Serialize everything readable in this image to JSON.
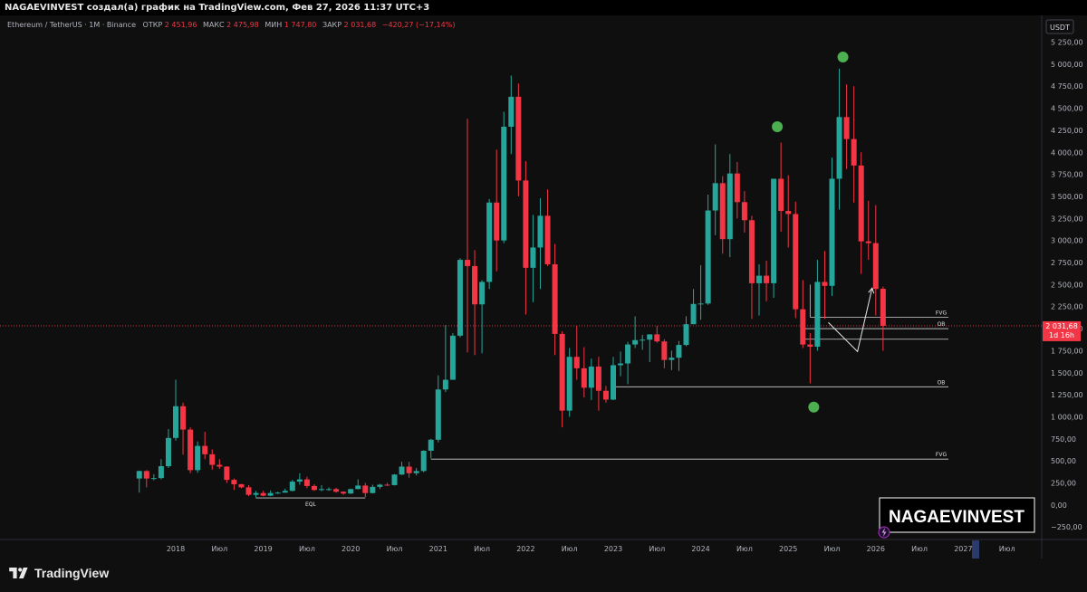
{
  "header": {
    "text": "NAGAEVINVEST создал(а) график на TradingView.com, Фев 27, 2026 11:37 UTC+3"
  },
  "legend": {
    "symbol": "Ethereum / TetherUS · 1M · Binance",
    "open_label": "ОТКР",
    "open": "2 451,96",
    "high_label": "МАКС",
    "high": "2 475,98",
    "low_label": "МИН",
    "low": "1 747,80",
    "close_label": "ЗАКР",
    "close": "2 031,68",
    "change": "−420,27 (−17,14%)"
  },
  "price_axis": {
    "currency": "USDT",
    "current_price": "2 031,68",
    "countdown": "1d 16h"
  },
  "watermark": "NAGAEVINVEST",
  "footer": {
    "brand": "TradingView"
  },
  "colors": {
    "up": "#26a69a",
    "down": "#f23645",
    "background": "#0f0f0f",
    "text": "#b2b5be",
    "marker": "#4caf50",
    "price_line": "#f23645"
  },
  "chart_data": {
    "type": "candlestick",
    "interval": "1M",
    "y_axis": {
      "min": -250,
      "max": 5250,
      "tick_step": 250,
      "tick_labels": [
        "5 250,00",
        "5 000,00",
        "4 750,00",
        "4 500,00",
        "4 250,00",
        "4 000,00",
        "3 750,00",
        "3 500,00",
        "3 250,00",
        "3 000,00",
        "2 750,00",
        "2 500,00",
        "2 250,00",
        "2 000,00",
        "1 750,00",
        "1 500,00",
        "1 250,00",
        "1 000,00",
        "750,00",
        "500,00",
        "250,00",
        "0,00",
        "−250,00"
      ]
    },
    "x_axis": {
      "labels": [
        {
          "text": "2018",
          "date": "2018-01"
        },
        {
          "text": "Июл",
          "date": "2018-07"
        },
        {
          "text": "2019",
          "date": "2019-01"
        },
        {
          "text": "Июл",
          "date": "2019-07"
        },
        {
          "text": "2020",
          "date": "2020-01"
        },
        {
          "text": "Июл",
          "date": "2020-07"
        },
        {
          "text": "2021",
          "date": "2021-01"
        },
        {
          "text": "Июл",
          "date": "2021-07"
        },
        {
          "text": "2022",
          "date": "2022-01"
        },
        {
          "text": "Июл",
          "date": "2022-07"
        },
        {
          "text": "2023",
          "date": "2023-01"
        },
        {
          "text": "Июл",
          "date": "2023-07"
        },
        {
          "text": "2024",
          "date": "2024-01"
        },
        {
          "text": "Июл",
          "date": "2024-07"
        },
        {
          "text": "2025",
          "date": "2025-01"
        },
        {
          "text": "Июл",
          "date": "2025-07"
        },
        {
          "text": "2026",
          "date": "2026-01"
        },
        {
          "text": "Июл",
          "date": "2026-07"
        },
        {
          "text": "2027",
          "date": "2027-01"
        },
        {
          "text": "Июл",
          "date": "2027-07"
        }
      ]
    },
    "candles": [
      {
        "t": "2017-08",
        "o": 300,
        "h": 390,
        "l": 140,
        "c": 385
      },
      {
        "t": "2017-09",
        "o": 385,
        "h": 395,
        "l": 200,
        "c": 300
      },
      {
        "t": "2017-10",
        "o": 300,
        "h": 350,
        "l": 280,
        "c": 305
      },
      {
        "t": "2017-11",
        "o": 305,
        "h": 520,
        "l": 290,
        "c": 440
      },
      {
        "t": "2017-12",
        "o": 440,
        "h": 860,
        "l": 420,
        "c": 760
      },
      {
        "t": "2018-01",
        "o": 760,
        "h": 1420,
        "l": 730,
        "c": 1120
      },
      {
        "t": "2018-02",
        "o": 1120,
        "h": 1160,
        "l": 570,
        "c": 855
      },
      {
        "t": "2018-03",
        "o": 855,
        "h": 880,
        "l": 360,
        "c": 395
      },
      {
        "t": "2018-04",
        "o": 395,
        "h": 720,
        "l": 365,
        "c": 670
      },
      {
        "t": "2018-05",
        "o": 670,
        "h": 830,
        "l": 520,
        "c": 575
      },
      {
        "t": "2018-06",
        "o": 575,
        "h": 630,
        "l": 400,
        "c": 455
      },
      {
        "t": "2018-07",
        "o": 455,
        "h": 520,
        "l": 410,
        "c": 435
      },
      {
        "t": "2018-08",
        "o": 435,
        "h": 440,
        "l": 250,
        "c": 285
      },
      {
        "t": "2018-09",
        "o": 285,
        "h": 300,
        "l": 170,
        "c": 235
      },
      {
        "t": "2018-10",
        "o": 235,
        "h": 240,
        "l": 190,
        "c": 200
      },
      {
        "t": "2018-11",
        "o": 200,
        "h": 225,
        "l": 100,
        "c": 115
      },
      {
        "t": "2018-12",
        "o": 115,
        "h": 160,
        "l": 82,
        "c": 135
      },
      {
        "t": "2019-01",
        "o": 135,
        "h": 160,
        "l": 100,
        "c": 105
      },
      {
        "t": "2019-02",
        "o": 105,
        "h": 165,
        "l": 100,
        "c": 135
      },
      {
        "t": "2019-03",
        "o": 135,
        "h": 150,
        "l": 125,
        "c": 140
      },
      {
        "t": "2019-04",
        "o": 140,
        "h": 185,
        "l": 140,
        "c": 160
      },
      {
        "t": "2019-05",
        "o": 160,
        "h": 285,
        "l": 155,
        "c": 265
      },
      {
        "t": "2019-06",
        "o": 265,
        "h": 360,
        "l": 230,
        "c": 290
      },
      {
        "t": "2019-07",
        "o": 290,
        "h": 320,
        "l": 190,
        "c": 215
      },
      {
        "t": "2019-08",
        "o": 215,
        "h": 235,
        "l": 160,
        "c": 170
      },
      {
        "t": "2019-09",
        "o": 170,
        "h": 225,
        "l": 155,
        "c": 180
      },
      {
        "t": "2019-10",
        "o": 180,
        "h": 200,
        "l": 160,
        "c": 180
      },
      {
        "t": "2019-11",
        "o": 180,
        "h": 195,
        "l": 140,
        "c": 150
      },
      {
        "t": "2019-12",
        "o": 150,
        "h": 155,
        "l": 115,
        "c": 130
      },
      {
        "t": "2020-01",
        "o": 130,
        "h": 185,
        "l": 125,
        "c": 180
      },
      {
        "t": "2020-02",
        "o": 180,
        "h": 290,
        "l": 180,
        "c": 220
      },
      {
        "t": "2020-03",
        "o": 220,
        "h": 250,
        "l": 90,
        "c": 135
      },
      {
        "t": "2020-04",
        "o": 135,
        "h": 230,
        "l": 130,
        "c": 205
      },
      {
        "t": "2020-05",
        "o": 205,
        "h": 240,
        "l": 180,
        "c": 230
      },
      {
        "t": "2020-06",
        "o": 230,
        "h": 250,
        "l": 215,
        "c": 225
      },
      {
        "t": "2020-07",
        "o": 225,
        "h": 350,
        "l": 220,
        "c": 345
      },
      {
        "t": "2020-08",
        "o": 345,
        "h": 490,
        "l": 340,
        "c": 435
      },
      {
        "t": "2020-09",
        "o": 435,
        "h": 490,
        "l": 310,
        "c": 360
      },
      {
        "t": "2020-10",
        "o": 360,
        "h": 420,
        "l": 335,
        "c": 385
      },
      {
        "t": "2020-11",
        "o": 385,
        "h": 620,
        "l": 370,
        "c": 615
      },
      {
        "t": "2020-12",
        "o": 615,
        "h": 750,
        "l": 530,
        "c": 740
      },
      {
        "t": "2021-01",
        "o": 740,
        "h": 1470,
        "l": 710,
        "c": 1310
      },
      {
        "t": "2021-02",
        "o": 1310,
        "h": 2040,
        "l": 1280,
        "c": 1420
      },
      {
        "t": "2021-03",
        "o": 1420,
        "h": 1950,
        "l": 1420,
        "c": 1920
      },
      {
        "t": "2021-04",
        "o": 1920,
        "h": 2800,
        "l": 1900,
        "c": 2780
      },
      {
        "t": "2021-05",
        "o": 2780,
        "h": 4380,
        "l": 1730,
        "c": 2710
      },
      {
        "t": "2021-06",
        "o": 2710,
        "h": 2890,
        "l": 1700,
        "c": 2275
      },
      {
        "t": "2021-07",
        "o": 2275,
        "h": 2550,
        "l": 1720,
        "c": 2530
      },
      {
        "t": "2021-08",
        "o": 2530,
        "h": 3470,
        "l": 2450,
        "c": 3430
      },
      {
        "t": "2021-09",
        "o": 3430,
        "h": 4030,
        "l": 2650,
        "c": 3000
      },
      {
        "t": "2021-10",
        "o": 3000,
        "h": 4460,
        "l": 2970,
        "c": 4290
      },
      {
        "t": "2021-11",
        "o": 4290,
        "h": 4870,
        "l": 3980,
        "c": 4630
      },
      {
        "t": "2021-12",
        "o": 4630,
        "h": 4780,
        "l": 3500,
        "c": 3680
      },
      {
        "t": "2022-01",
        "o": 3680,
        "h": 3900,
        "l": 2160,
        "c": 2690
      },
      {
        "t": "2022-02",
        "o": 2690,
        "h": 3290,
        "l": 2300,
        "c": 2920
      },
      {
        "t": "2022-03",
        "o": 2920,
        "h": 3480,
        "l": 2450,
        "c": 3280
      },
      {
        "t": "2022-04",
        "o": 3280,
        "h": 3580,
        "l": 2710,
        "c": 2730
      },
      {
        "t": "2022-05",
        "o": 2730,
        "h": 2960,
        "l": 1700,
        "c": 1940
      },
      {
        "t": "2022-06",
        "o": 1940,
        "h": 1970,
        "l": 880,
        "c": 1070
      },
      {
        "t": "2022-07",
        "o": 1070,
        "h": 1780,
        "l": 1000,
        "c": 1680
      },
      {
        "t": "2022-08",
        "o": 1680,
        "h": 2030,
        "l": 1420,
        "c": 1550
      },
      {
        "t": "2022-09",
        "o": 1550,
        "h": 1790,
        "l": 1220,
        "c": 1330
      },
      {
        "t": "2022-10",
        "o": 1330,
        "h": 1660,
        "l": 1190,
        "c": 1570
      },
      {
        "t": "2022-11",
        "o": 1570,
        "h": 1680,
        "l": 1070,
        "c": 1295
      },
      {
        "t": "2022-12",
        "o": 1295,
        "h": 1350,
        "l": 1160,
        "c": 1195
      },
      {
        "t": "2023-01",
        "o": 1195,
        "h": 1680,
        "l": 1190,
        "c": 1585
      },
      {
        "t": "2023-02",
        "o": 1585,
        "h": 1740,
        "l": 1460,
        "c": 1605
      },
      {
        "t": "2023-03",
        "o": 1605,
        "h": 1850,
        "l": 1370,
        "c": 1820
      },
      {
        "t": "2023-04",
        "o": 1820,
        "h": 2140,
        "l": 1780,
        "c": 1870
      },
      {
        "t": "2023-05",
        "o": 1870,
        "h": 1930,
        "l": 1760,
        "c": 1875
      },
      {
        "t": "2023-06",
        "o": 1875,
        "h": 1930,
        "l": 1620,
        "c": 1935
      },
      {
        "t": "2023-07",
        "o": 1935,
        "h": 2030,
        "l": 1840,
        "c": 1855
      },
      {
        "t": "2023-08",
        "o": 1855,
        "h": 1880,
        "l": 1550,
        "c": 1645
      },
      {
        "t": "2023-09",
        "o": 1645,
        "h": 1750,
        "l": 1530,
        "c": 1670
      },
      {
        "t": "2023-10",
        "o": 1670,
        "h": 1860,
        "l": 1520,
        "c": 1815
      },
      {
        "t": "2023-11",
        "o": 1815,
        "h": 2140,
        "l": 1800,
        "c": 2050
      },
      {
        "t": "2023-12",
        "o": 2050,
        "h": 2450,
        "l": 2050,
        "c": 2280
      },
      {
        "t": "2024-01",
        "o": 2280,
        "h": 2720,
        "l": 2100,
        "c": 2285
      },
      {
        "t": "2024-02",
        "o": 2285,
        "h": 3520,
        "l": 2270,
        "c": 3340
      },
      {
        "t": "2024-03",
        "o": 3340,
        "h": 4090,
        "l": 3060,
        "c": 3650
      },
      {
        "t": "2024-04",
        "o": 3650,
        "h": 3730,
        "l": 2850,
        "c": 3015
      },
      {
        "t": "2024-05",
        "o": 3015,
        "h": 3980,
        "l": 2810,
        "c": 3760
      },
      {
        "t": "2024-06",
        "o": 3760,
        "h": 3890,
        "l": 3250,
        "c": 3435
      },
      {
        "t": "2024-07",
        "o": 3435,
        "h": 3560,
        "l": 3090,
        "c": 3230
      },
      {
        "t": "2024-08",
        "o": 3230,
        "h": 3280,
        "l": 2110,
        "c": 2515
      },
      {
        "t": "2024-09",
        "o": 2515,
        "h": 2730,
        "l": 2150,
        "c": 2600
      },
      {
        "t": "2024-10",
        "o": 2600,
        "h": 2770,
        "l": 2310,
        "c": 2515
      },
      {
        "t": "2024-11",
        "o": 2515,
        "h": 3680,
        "l": 2350,
        "c": 3700
      },
      {
        "t": "2024-12",
        "o": 3700,
        "h": 4110,
        "l": 3100,
        "c": 3335
      },
      {
        "t": "2025-01",
        "o": 3335,
        "h": 3740,
        "l": 2920,
        "c": 3300
      },
      {
        "t": "2025-02",
        "o": 3300,
        "h": 3440,
        "l": 2120,
        "c": 2220
      },
      {
        "t": "2025-03",
        "o": 2220,
        "h": 2550,
        "l": 1780,
        "c": 1820
      },
      {
        "t": "2025-04",
        "o": 1820,
        "h": 1950,
        "l": 1380,
        "c": 1795
      },
      {
        "t": "2025-05",
        "o": 1795,
        "h": 2780,
        "l": 1750,
        "c": 2530
      },
      {
        "t": "2025-06",
        "o": 2530,
        "h": 2880,
        "l": 2110,
        "c": 2485
      },
      {
        "t": "2025-07",
        "o": 2485,
        "h": 3940,
        "l": 2370,
        "c": 3700
      },
      {
        "t": "2025-08",
        "o": 3700,
        "h": 4950,
        "l": 3350,
        "c": 4400
      },
      {
        "t": "2025-09",
        "o": 4400,
        "h": 4770,
        "l": 3810,
        "c": 4150
      },
      {
        "t": "2025-10",
        "o": 4150,
        "h": 4750,
        "l": 3430,
        "c": 3850
      },
      {
        "t": "2025-11",
        "o": 3850,
        "h": 4000,
        "l": 2620,
        "c": 2990
      },
      {
        "t": "2025-12",
        "o": 2990,
        "h": 3450,
        "l": 2780,
        "c": 2970
      },
      {
        "t": "2026-01",
        "o": 2970,
        "h": 3400,
        "l": 2150,
        "c": 2450
      },
      {
        "t": "2026-02",
        "o": 2452,
        "h": 2476,
        "l": 1748,
        "c": 2032
      }
    ],
    "horizontal_levels": [
      {
        "label": "FVG",
        "from": "2025-04",
        "price": 2130
      },
      {
        "label": "OB",
        "from": "2025-03",
        "price": 2000
      },
      {
        "label": "OB",
        "from": "2023-01",
        "price": 1340
      },
      {
        "label": "FVG",
        "from": "2020-12",
        "price": 520
      },
      {
        "label": "EQL",
        "from": "2018-12",
        "to": "2020-03",
        "price": 80
      }
    ],
    "markers": [
      {
        "t": "2024-11",
        "price": 4290
      },
      {
        "t": "2025-08",
        "price": 5080
      },
      {
        "t": "2025-04",
        "price": 1110
      }
    ],
    "arrow": {
      "points": [
        [
          "2025-06",
          2070
        ],
        [
          "2025-10",
          1740
        ],
        [
          "2025-12",
          2460
        ]
      ]
    }
  }
}
